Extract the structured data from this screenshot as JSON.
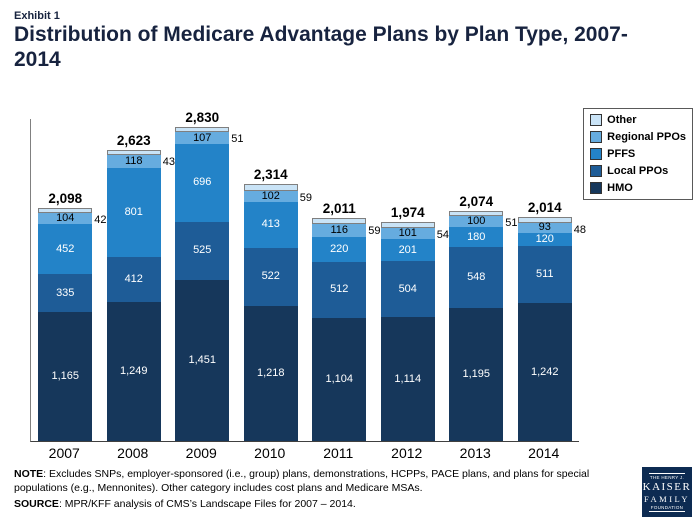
{
  "header": {
    "exhibit": "Exhibit 1",
    "title": "Distribution of Medicare Advantage Plans by Plan Type, 2007-2014"
  },
  "chart_data": {
    "type": "bar",
    "stacked": true,
    "title": "Distribution of Medicare Advantage Plans by Plan Type, 2007-2014",
    "categories": [
      "2007",
      "2008",
      "2009",
      "2010",
      "2011",
      "2012",
      "2013",
      "2014"
    ],
    "series": [
      {
        "name": "HMO",
        "color": "#16375B",
        "label_color": "#ffffff",
        "label_outside": false,
        "values": [
          1165,
          1249,
          1451,
          1218,
          1104,
          1114,
          1195,
          1242
        ]
      },
      {
        "name": "Local PPOs",
        "color": "#1E5C97",
        "label_color": "#ffffff",
        "label_outside": false,
        "values": [
          335,
          412,
          525,
          522,
          512,
          504,
          548,
          511
        ]
      },
      {
        "name": "PFFS",
        "color": "#2383C8",
        "label_color": "#ffffff",
        "label_outside": false,
        "values": [
          452,
          801,
          696,
          413,
          220,
          201,
          180,
          120
        ]
      },
      {
        "name": "Regional PPOs",
        "color": "#66ACDF",
        "label_color": "#000000",
        "label_outside": false,
        "values": [
          104,
          118,
          107,
          102,
          116,
          101,
          100,
          93
        ]
      },
      {
        "name": "Other",
        "color": "#C9E3F6",
        "label_color": "#000000",
        "label_outside": true,
        "border": "#7f7f7f",
        "values": [
          42,
          43,
          51,
          59,
          59,
          54,
          51,
          48
        ]
      }
    ],
    "totals": [
      "2,098",
      "2,623",
      "2,830",
      "2,314",
      "2,011",
      "1,974",
      "2,074",
      "2,014"
    ],
    "xlabel": "",
    "ylabel": "",
    "ylim": [
      0,
      2900
    ],
    "grid": false,
    "legend_position": "top-right",
    "legend_order": [
      "Other",
      "Regional PPOs",
      "PFFS",
      "Local PPOs",
      "HMO"
    ]
  },
  "legend": {
    "items": [
      {
        "label": "Other",
        "color": "#C9E3F6"
      },
      {
        "label": "Regional PPOs",
        "color": "#66ACDF"
      },
      {
        "label": "PFFS",
        "color": "#2383C8"
      },
      {
        "label": "Local PPOs",
        "color": "#1E5C97"
      },
      {
        "label": "HMO",
        "color": "#16375B"
      }
    ]
  },
  "footer": {
    "note_label": "NOTE",
    "note_text": ": Excludes SNPs, employer-sponsored (i.e., group) plans, demonstrations, HCPPs, PACE plans, and plans for special populations (e.g., Mennonites).  Other category includes cost plans and Medicare MSAs.",
    "source_label": "SOURCE",
    "source_text": ":  MPR/KFF analysis of CMS’s Landscape Files for 2007 – 2014."
  },
  "logo": {
    "line1": "THE HENRY J.",
    "line2": "KAISER",
    "line3": "FAMILY",
    "line4": "FOUNDATION"
  }
}
